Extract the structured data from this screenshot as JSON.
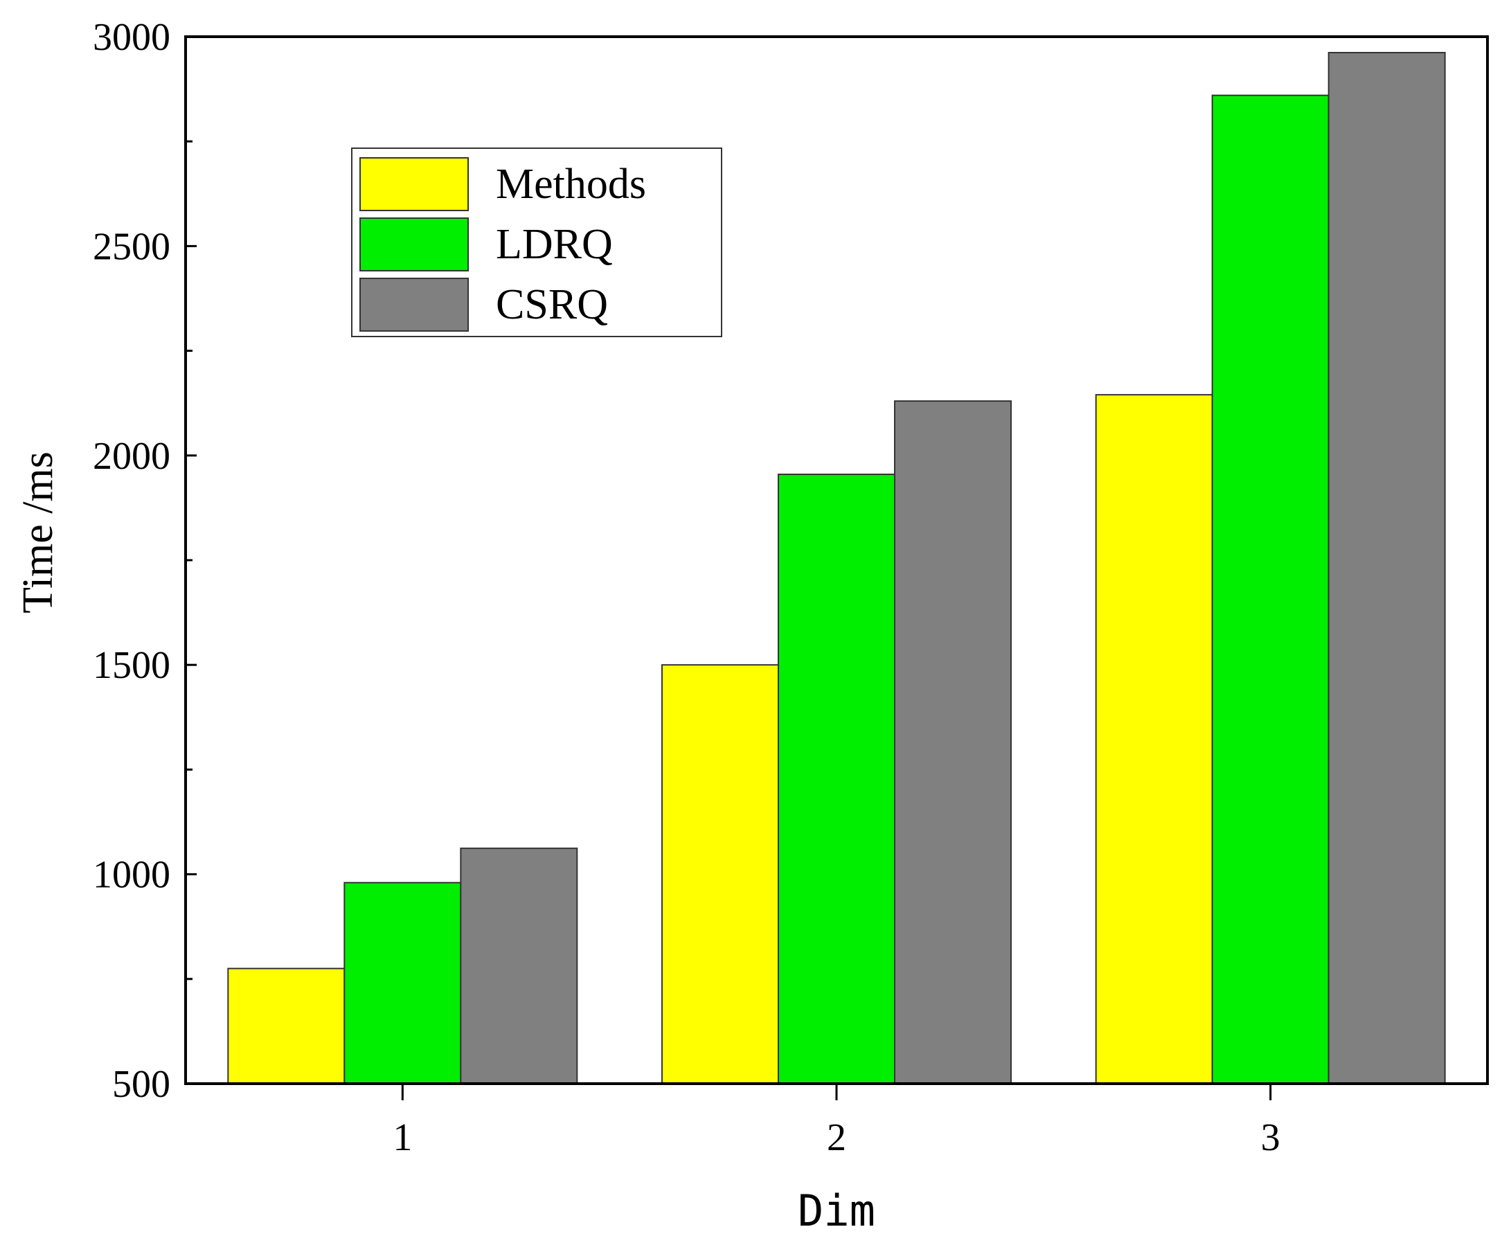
{
  "chart_data": {
    "type": "bar",
    "title": "",
    "xlabel": "Dim",
    "ylabel": "Time  /ms",
    "categories": [
      "1",
      "2",
      "3"
    ],
    "series": [
      {
        "name": "Methods",
        "color": "#ffff00",
        "values": [
          775,
          1500,
          2145
        ]
      },
      {
        "name": "LDRQ",
        "color": "#00ee00",
        "values": [
          980,
          1955,
          2860
        ]
      },
      {
        "name": "CSRQ",
        "color": "#808080",
        "values": [
          1062,
          2130,
          2962
        ]
      }
    ],
    "ylim": [
      500,
      3000
    ],
    "yticks": [
      500,
      1000,
      1500,
      2000,
      2500,
      3000
    ],
    "grid": false,
    "legend_position": "top-left"
  }
}
